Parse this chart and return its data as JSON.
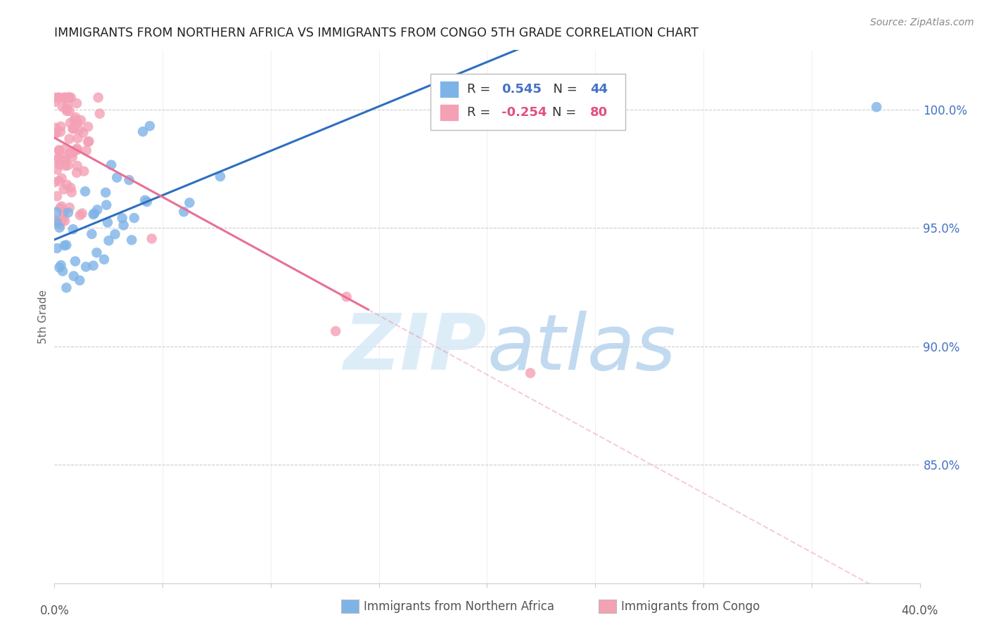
{
  "title": "IMMIGRANTS FROM NORTHERN AFRICA VS IMMIGRANTS FROM CONGO 5TH GRADE CORRELATION CHART",
  "source": "Source: ZipAtlas.com",
  "ylabel": "5th Grade",
  "ytick_labels": [
    "100.0%",
    "95.0%",
    "90.0%",
    "85.0%"
  ],
  "ytick_values": [
    1.0,
    0.95,
    0.9,
    0.85
  ],
  "xlim": [
    0.0,
    0.4
  ],
  "ylim": [
    0.8,
    1.025
  ],
  "R_blue": 0.545,
  "N_blue": 44,
  "R_pink": -0.254,
  "N_pink": 80,
  "legend_label_blue": "Immigrants from Northern Africa",
  "legend_label_pink": "Immigrants from Congo",
  "blue_color": "#7EB3E8",
  "pink_color": "#F4A0B5",
  "blue_line_color": "#2E6FBF",
  "pink_line_color": "#E87095"
}
